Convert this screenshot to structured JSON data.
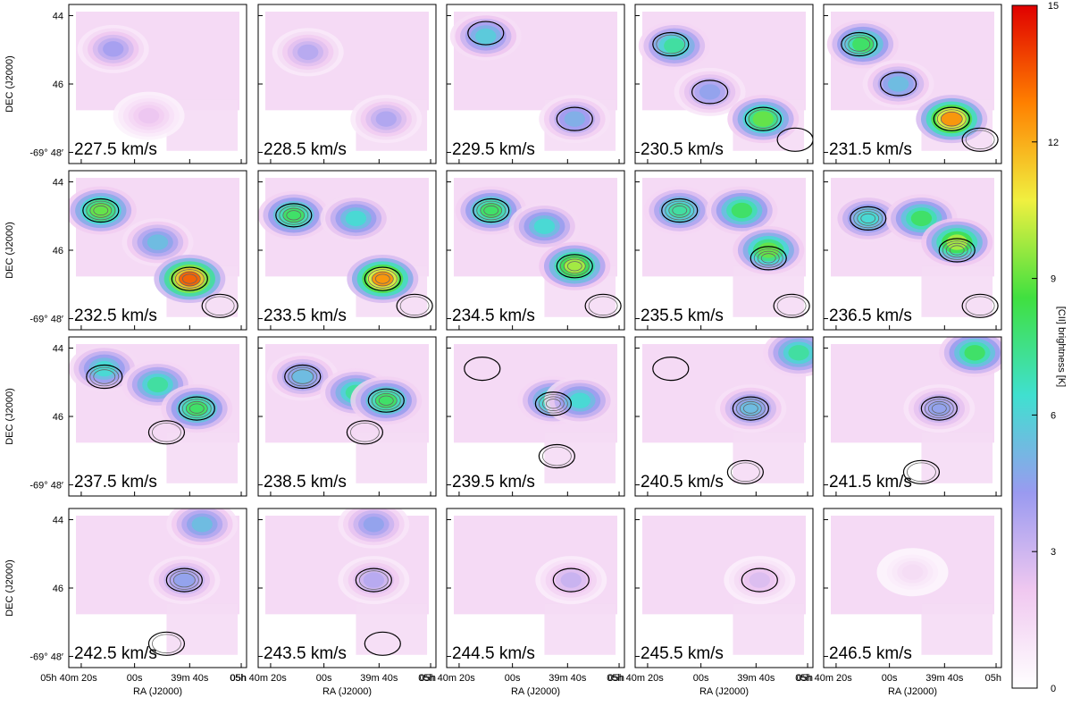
{
  "chart_data": {
    "type": "heatmap",
    "layout": "channel-map grid, 4 rows x 5 columns",
    "panels": [
      {
        "label": "227.5 km/s",
        "components": [
          {
            "ra": 0.25,
            "dec": 0.28,
            "peak": 4.5
          },
          {
            "ra": 0.45,
            "dec": 0.7,
            "peak": 2.5
          }
        ],
        "contours": []
      },
      {
        "label": "228.5 km/s",
        "components": [
          {
            "ra": 0.28,
            "dec": 0.3,
            "peak": 4.0
          },
          {
            "ra": 0.72,
            "dec": 0.72,
            "peak": 4.2
          }
        ],
        "contours": []
      },
      {
        "label": "229.5 km/s",
        "components": [
          {
            "ra": 0.22,
            "dec": 0.2,
            "peak": 6.5
          },
          {
            "ra": 0.72,
            "dec": 0.72,
            "peak": 5.5
          }
        ],
        "contours": [
          {
            "ra": 0.22,
            "dec": 0.18,
            "rings": 1
          },
          {
            "ra": 0.72,
            "dec": 0.72,
            "rings": 1
          }
        ]
      },
      {
        "label": "230.5 km/s",
        "components": [
          {
            "ra": 0.22,
            "dec": 0.26,
            "peak": 8.0
          },
          {
            "ra": 0.42,
            "dec": 0.55,
            "peak": 5.0
          },
          {
            "ra": 0.72,
            "dec": 0.72,
            "peak": 10.0
          }
        ],
        "contours": [
          {
            "ra": 0.2,
            "dec": 0.25,
            "rings": 2
          },
          {
            "ra": 0.42,
            "dec": 0.55,
            "rings": 1
          },
          {
            "ra": 0.72,
            "dec": 0.72,
            "rings": 2
          },
          {
            "ra": 0.9,
            "dec": 0.85,
            "rings": 1
          }
        ]
      },
      {
        "label": "231.5 km/s",
        "components": [
          {
            "ra": 0.22,
            "dec": 0.25,
            "peak": 9.0
          },
          {
            "ra": 0.42,
            "dec": 0.5,
            "peak": 6.0
          },
          {
            "ra": 0.72,
            "dec": 0.72,
            "peak": 14.0
          }
        ],
        "contours": [
          {
            "ra": 0.2,
            "dec": 0.25,
            "rings": 3
          },
          {
            "ra": 0.42,
            "dec": 0.5,
            "rings": 1
          },
          {
            "ra": 0.72,
            "dec": 0.72,
            "rings": 3
          },
          {
            "ra": 0.88,
            "dec": 0.85,
            "rings": 2
          }
        ]
      },
      {
        "label": "232.5 km/s",
        "components": [
          {
            "ra": 0.18,
            "dec": 0.25,
            "peak": 10.0
          },
          {
            "ra": 0.5,
            "dec": 0.45,
            "peak": 6.0
          },
          {
            "ra": 0.68,
            "dec": 0.68,
            "peak": 15.0
          }
        ],
        "contours": [
          {
            "ra": 0.18,
            "dec": 0.25,
            "rings": 4
          },
          {
            "ra": 0.68,
            "dec": 0.68,
            "rings": 4
          },
          {
            "ra": 0.85,
            "dec": 0.85,
            "rings": 2
          }
        ]
      },
      {
        "label": "233.5 km/s",
        "components": [
          {
            "ra": 0.2,
            "dec": 0.28,
            "peak": 9.0
          },
          {
            "ra": 0.55,
            "dec": 0.3,
            "peak": 7.0
          },
          {
            "ra": 0.7,
            "dec": 0.68,
            "peak": 14.0
          }
        ],
        "contours": [
          {
            "ra": 0.2,
            "dec": 0.28,
            "rings": 4
          },
          {
            "ra": 0.7,
            "dec": 0.68,
            "rings": 4
          },
          {
            "ra": 0.88,
            "dec": 0.85,
            "rings": 2
          }
        ]
      },
      {
        "label": "234.5 km/s",
        "components": [
          {
            "ra": 0.25,
            "dec": 0.25,
            "peak": 9.0
          },
          {
            "ra": 0.55,
            "dec": 0.35,
            "peak": 7.0
          },
          {
            "ra": 0.72,
            "dec": 0.6,
            "peak": 11.0
          }
        ],
        "contours": [
          {
            "ra": 0.25,
            "dec": 0.25,
            "rings": 4
          },
          {
            "ra": 0.72,
            "dec": 0.6,
            "rings": 4
          },
          {
            "ra": 0.88,
            "dec": 0.85,
            "rings": 2
          }
        ]
      },
      {
        "label": "235.5 km/s",
        "components": [
          {
            "ra": 0.25,
            "dec": 0.25,
            "peak": 8.0
          },
          {
            "ra": 0.6,
            "dec": 0.25,
            "peak": 9.0
          },
          {
            "ra": 0.75,
            "dec": 0.5,
            "peak": 10.0
          }
        ],
        "contours": [
          {
            "ra": 0.25,
            "dec": 0.25,
            "rings": 4
          },
          {
            "ra": 0.75,
            "dec": 0.55,
            "rings": 4
          },
          {
            "ra": 0.88,
            "dec": 0.85,
            "rings": 2
          }
        ]
      },
      {
        "label": "236.5 km/s",
        "components": [
          {
            "ra": 0.25,
            "dec": 0.3,
            "peak": 7.0
          },
          {
            "ra": 0.55,
            "dec": 0.3,
            "peak": 9.0
          },
          {
            "ra": 0.75,
            "dec": 0.45,
            "peak": 11.0
          }
        ],
        "contours": [
          {
            "ra": 0.25,
            "dec": 0.3,
            "rings": 4
          },
          {
            "ra": 0.75,
            "dec": 0.5,
            "rings": 4
          },
          {
            "ra": 0.88,
            "dec": 0.85,
            "rings": 2
          }
        ]
      },
      {
        "label": "237.5 km/s",
        "components": [
          {
            "ra": 0.2,
            "dec": 0.2,
            "peak": 7.0
          },
          {
            "ra": 0.5,
            "dec": 0.3,
            "peak": 8.0
          },
          {
            "ra": 0.72,
            "dec": 0.45,
            "peak": 9.0
          }
        ],
        "contours": [
          {
            "ra": 0.2,
            "dec": 0.25,
            "rings": 3
          },
          {
            "ra": 0.72,
            "dec": 0.45,
            "rings": 4
          },
          {
            "ra": 0.55,
            "dec": 0.6,
            "rings": 2
          }
        ]
      },
      {
        "label": "238.5 km/s",
        "components": [
          {
            "ra": 0.25,
            "dec": 0.25,
            "peak": 6.0
          },
          {
            "ra": 0.55,
            "dec": 0.35,
            "peak": 8.0
          },
          {
            "ra": 0.72,
            "dec": 0.4,
            "peak": 9.0
          }
        ],
        "contours": [
          {
            "ra": 0.25,
            "dec": 0.25,
            "rings": 3
          },
          {
            "ra": 0.72,
            "dec": 0.4,
            "rings": 4
          },
          {
            "ra": 0.6,
            "dec": 0.6,
            "rings": 2
          }
        ]
      },
      {
        "label": "239.5 km/s",
        "components": [
          {
            "ra": 0.6,
            "dec": 0.4,
            "peak": 8.0
          },
          {
            "ra": 0.75,
            "dec": 0.4,
            "peak": 7.0
          }
        ],
        "contours": [
          {
            "ra": 0.6,
            "dec": 0.42,
            "rings": 4
          },
          {
            "ra": 0.2,
            "dec": 0.2,
            "rings": 1
          },
          {
            "ra": 0.62,
            "dec": 0.75,
            "rings": 2
          }
        ]
      },
      {
        "label": "240.5 km/s",
        "components": [
          {
            "ra": 0.65,
            "dec": 0.45,
            "peak": 6.0
          },
          {
            "ra": 0.92,
            "dec": 0.1,
            "peak": 8.0
          }
        ],
        "contours": [
          {
            "ra": 0.65,
            "dec": 0.45,
            "rings": 4
          },
          {
            "ra": 0.2,
            "dec": 0.2,
            "rings": 1
          },
          {
            "ra": 0.62,
            "dec": 0.85,
            "rings": 2
          }
        ]
      },
      {
        "label": "241.5 km/s",
        "components": [
          {
            "ra": 0.65,
            "dec": 0.45,
            "peak": 5.0
          },
          {
            "ra": 0.85,
            "dec": 0.1,
            "peak": 9.0
          }
        ],
        "contours": [
          {
            "ra": 0.65,
            "dec": 0.45,
            "rings": 4
          },
          {
            "ra": 0.55,
            "dec": 0.85,
            "rings": 2
          }
        ]
      },
      {
        "label": "242.5 km/s",
        "components": [
          {
            "ra": 0.65,
            "dec": 0.45,
            "peak": 5.0
          },
          {
            "ra": 0.75,
            "dec": 0.1,
            "peak": 6.0
          }
        ],
        "contours": [
          {
            "ra": 0.65,
            "dec": 0.45,
            "rings": 3
          },
          {
            "ra": 0.55,
            "dec": 0.85,
            "rings": 2
          }
        ]
      },
      {
        "label": "243.5 km/s",
        "components": [
          {
            "ra": 0.65,
            "dec": 0.45,
            "peak": 4.0
          },
          {
            "ra": 0.65,
            "dec": 0.1,
            "peak": 5.0
          }
        ],
        "contours": [
          {
            "ra": 0.65,
            "dec": 0.45,
            "rings": 2
          },
          {
            "ra": 0.7,
            "dec": 0.85,
            "rings": 1
          }
        ]
      },
      {
        "label": "244.5 km/s",
        "components": [
          {
            "ra": 0.7,
            "dec": 0.45,
            "peak": 3.5
          }
        ],
        "contours": [
          {
            "ra": 0.7,
            "dec": 0.45,
            "rings": 1
          }
        ]
      },
      {
        "label": "245.5 km/s",
        "components": [
          {
            "ra": 0.7,
            "dec": 0.45,
            "peak": 3.0
          }
        ],
        "contours": [
          {
            "ra": 0.7,
            "dec": 0.45,
            "rings": 1
          }
        ]
      },
      {
        "label": "246.5 km/s",
        "components": [
          {
            "ra": 0.5,
            "dec": 0.4,
            "peak": 1.5
          }
        ],
        "contours": []
      }
    ],
    "colorbar": {
      "label": "[CII] brightness [K]",
      "min": 0,
      "max": 15,
      "ticks": [
        0,
        3,
        6,
        9,
        12,
        15
      ],
      "colormap": [
        "#ffffff",
        "#f0c8f0",
        "#9a9af0",
        "#40e0d0",
        "#40e040",
        "#f0f040",
        "#ff8000",
        "#e00000"
      ]
    },
    "ylabel": "DEC (J2000)",
    "xlabel": "RA (J2000)",
    "ytick_labels": [
      "44",
      "46",
      "-69° 48′"
    ],
    "xtick_labels": [
      "05h 40m 20s",
      "00s",
      "39m 40s",
      "05h"
    ]
  }
}
